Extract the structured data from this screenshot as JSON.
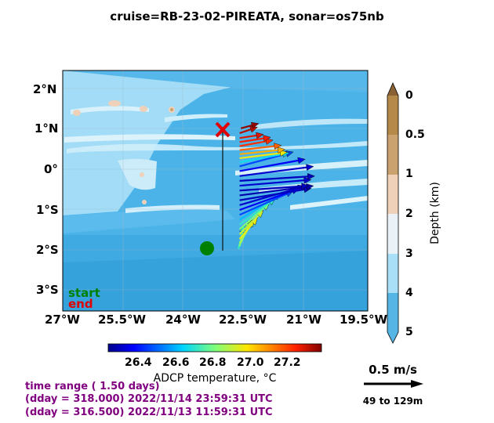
{
  "title": "cruise=RB-23-02-PIREATA,   sonar=os75nb",
  "map": {
    "lon_ticks": [
      "27°W",
      "25.5°W",
      "24°W",
      "22.5°W",
      "21°W",
      "19.5°W"
    ],
    "lat_ticks": [
      "2°N",
      "1°N",
      "0°",
      "1°S",
      "2°S",
      "3°S"
    ],
    "legend_start": "start",
    "legend_end": "end",
    "start_color": "#008000",
    "end_color": "#e00000"
  },
  "depth_colorbar": {
    "label": "Depth (km)",
    "ticks": [
      "0",
      "0.5",
      "1",
      "2",
      "3",
      "4",
      "5"
    ],
    "colors": [
      "#b5894a",
      "#c9a26f",
      "#eed1b8",
      "#eaf2f7",
      "#a9e0f7",
      "#55b6e6"
    ]
  },
  "temp_colorbar": {
    "label": "ADCP temperature, °C",
    "ticks": [
      "26.4",
      "26.6",
      "26.8",
      "27.0",
      "27.2"
    ],
    "range": [
      26.22,
      27.38
    ]
  },
  "scale_arrow": {
    "label": "0.5 m/s",
    "depth_range": "49 to 129m"
  },
  "time_info": {
    "line1": "time range ( 1.50 days)",
    "line2": "(dday = 318.000) 2022/11/14 23:59:31 UTC",
    "line3": "(dday = 316.500) 2022/11/13 11:59:31 UTC"
  },
  "vectors": [
    {
      "lat": -1.97,
      "lon": -22.68,
      "u": 0.05,
      "v": 0.2,
      "t": 26.7
    },
    {
      "lat": -1.9,
      "lon": -22.66,
      "u": 0.1,
      "v": 0.22,
      "t": 26.8
    },
    {
      "lat": -1.82,
      "lon": -22.65,
      "u": 0.12,
      "v": 0.2,
      "t": 26.85
    },
    {
      "lat": -1.72,
      "lon": -22.65,
      "u": 0.15,
      "v": 0.18,
      "t": 26.95
    },
    {
      "lat": -1.6,
      "lon": -22.65,
      "u": 0.2,
      "v": 0.2,
      "t": 26.9
    },
    {
      "lat": -1.48,
      "lon": -22.65,
      "u": 0.25,
      "v": 0.22,
      "t": 26.8
    },
    {
      "lat": -1.36,
      "lon": -22.65,
      "u": 0.3,
      "v": 0.22,
      "t": 26.7
    },
    {
      "lat": -1.24,
      "lon": -22.65,
      "u": 0.35,
      "v": 0.22,
      "t": 26.6
    },
    {
      "lat": -1.12,
      "lon": -22.65,
      "u": 0.45,
      "v": 0.2,
      "t": 26.45
    },
    {
      "lat": -1.0,
      "lon": -22.65,
      "u": 0.5,
      "v": 0.18,
      "t": 26.35
    },
    {
      "lat": -0.88,
      "lon": -22.65,
      "u": 0.55,
      "v": 0.16,
      "t": 26.3
    },
    {
      "lat": -0.76,
      "lon": -22.65,
      "u": 0.6,
      "v": 0.1,
      "t": 26.28
    },
    {
      "lat": -0.64,
      "lon": -22.65,
      "u": 0.62,
      "v": 0.08,
      "t": 26.26
    },
    {
      "lat": -0.52,
      "lon": -22.65,
      "u": 0.58,
      "v": 0.04,
      "t": 26.28
    },
    {
      "lat": -0.4,
      "lon": -22.65,
      "u": 0.6,
      "v": 0.05,
      "t": 26.3
    },
    {
      "lat": -0.28,
      "lon": -22.65,
      "u": 0.63,
      "v": 0.04,
      "t": 26.28
    },
    {
      "lat": -0.16,
      "lon": -22.65,
      "u": 0.62,
      "v": 0.08,
      "t": 26.3
    },
    {
      "lat": -0.04,
      "lon": -22.65,
      "u": 0.55,
      "v": 0.1,
      "t": 26.35
    },
    {
      "lat": 0.08,
      "lon": -22.65,
      "u": 0.45,
      "v": 0.12,
      "t": 26.45
    },
    {
      "lat": 0.18,
      "lon": -22.65,
      "u": 0.42,
      "v": 0.08,
      "t": 26.65
    },
    {
      "lat": 0.28,
      "lon": -22.65,
      "u": 0.4,
      "v": 0.05,
      "t": 26.95
    },
    {
      "lat": 0.38,
      "lon": -22.65,
      "u": 0.38,
      "v": 0.04,
      "t": 27.05
    },
    {
      "lat": 0.48,
      "lon": -22.65,
      "u": 0.35,
      "v": 0.04,
      "t": 27.15
    },
    {
      "lat": 0.58,
      "lon": -22.65,
      "u": 0.28,
      "v": 0.05,
      "t": 27.22
    },
    {
      "lat": 0.68,
      "lon": -22.65,
      "u": 0.26,
      "v": 0.04,
      "t": 27.25
    },
    {
      "lat": 0.78,
      "lon": -22.65,
      "u": 0.2,
      "v": 0.03,
      "t": 27.28
    },
    {
      "lat": 0.9,
      "lon": -22.65,
      "u": 0.15,
      "v": 0.05,
      "t": 27.32
    },
    {
      "lat": 1.02,
      "lon": -22.62,
      "u": 0.15,
      "v": 0.04,
      "t": 27.36
    }
  ]
}
